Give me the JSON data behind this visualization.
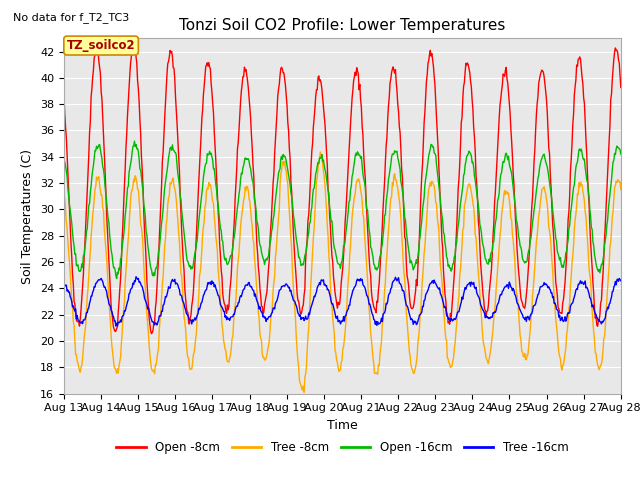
{
  "title": "Tonzi Soil CO2 Profile: Lower Temperatures",
  "subtitle": "No data for f_T2_TC3",
  "ylabel": "Soil Temperatures (C)",
  "xlabel": "Time",
  "ylim": [
    16,
    43
  ],
  "yticks": [
    16,
    18,
    20,
    22,
    24,
    26,
    28,
    30,
    32,
    34,
    36,
    38,
    40,
    42
  ],
  "xlim_days": [
    0,
    15
  ],
  "x_tick_labels": [
    "Aug 13",
    "Aug 14",
    "Aug 15",
    "Aug 16",
    "Aug 17",
    "Aug 18",
    "Aug 19",
    "Aug 20",
    "Aug 21",
    "Aug 22",
    "Aug 23",
    "Aug 24",
    "Aug 25",
    "Aug 26",
    "Aug 27",
    "Aug 28"
  ],
  "legend_labels": [
    "Open -8cm",
    "Tree -8cm",
    "Open -16cm",
    "Tree -16cm"
  ],
  "line_colors": [
    "#ff0000",
    "#ffaa00",
    "#00bb00",
    "#0000ff"
  ],
  "annotation_text": "TZ_soilco2",
  "annotation_bg": "#ffff99",
  "annotation_border": "#cc8800",
  "fig_bg": "#ffffff",
  "plot_bg": "#e8e8e8",
  "title_fontsize": 11,
  "label_fontsize": 9,
  "tick_fontsize": 8
}
